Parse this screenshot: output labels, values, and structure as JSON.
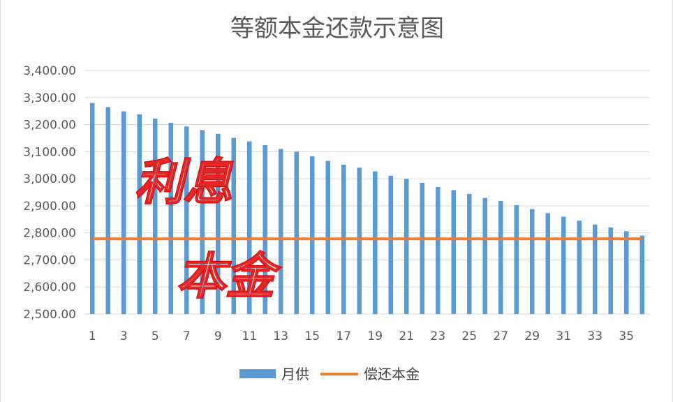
{
  "chart_data": {
    "type": "bar",
    "title": "等额本金还款示意图",
    "xlabel": "",
    "ylabel": "",
    "ylim": [
      2500,
      3400
    ],
    "y_ticks": [
      "2,500.00",
      "2,600.00",
      "2,700.00",
      "2,800.00",
      "2,900.00",
      "3,000.00",
      "3,100.00",
      "3,200.00",
      "3,300.00",
      "3,400.00"
    ],
    "y_tick_values": [
      2500,
      2600,
      2700,
      2800,
      2900,
      3000,
      3100,
      3200,
      3300,
      3400
    ],
    "x_tick_labels": [
      "1",
      "3",
      "5",
      "7",
      "9",
      "11",
      "13",
      "15",
      "17",
      "19",
      "21",
      "23",
      "25",
      "27",
      "29",
      "31",
      "33",
      "35"
    ],
    "categories": [
      1,
      2,
      3,
      4,
      5,
      6,
      7,
      8,
      9,
      10,
      11,
      12,
      13,
      14,
      15,
      16,
      17,
      18,
      19,
      20,
      21,
      22,
      23,
      24,
      25,
      26,
      27,
      28,
      29,
      30,
      31,
      32,
      33,
      34,
      35,
      36
    ],
    "grid": true,
    "legend_position": "bottom",
    "series": [
      {
        "name": "月供",
        "type": "bar",
        "color": "#5b9bd5",
        "values": [
          3280,
          3265,
          3249,
          3238,
          3222,
          3207,
          3193,
          3180,
          3166,
          3151,
          3138,
          3124,
          3110,
          3100,
          3083,
          3066,
          3052,
          3041,
          3027,
          3011,
          3000,
          2985,
          2969,
          2958,
          2944,
          2929,
          2918,
          2902,
          2888,
          2873,
          2860,
          2845,
          2831,
          2820,
          2806,
          2790
        ]
      },
      {
        "name": "偿还本金",
        "type": "line",
        "color": "#ed7d31",
        "value": 2777.78
      }
    ],
    "annotations": [
      {
        "text": "利息",
        "color": "#e00000"
      },
      {
        "text": "本金",
        "color": "#e00000"
      }
    ]
  }
}
